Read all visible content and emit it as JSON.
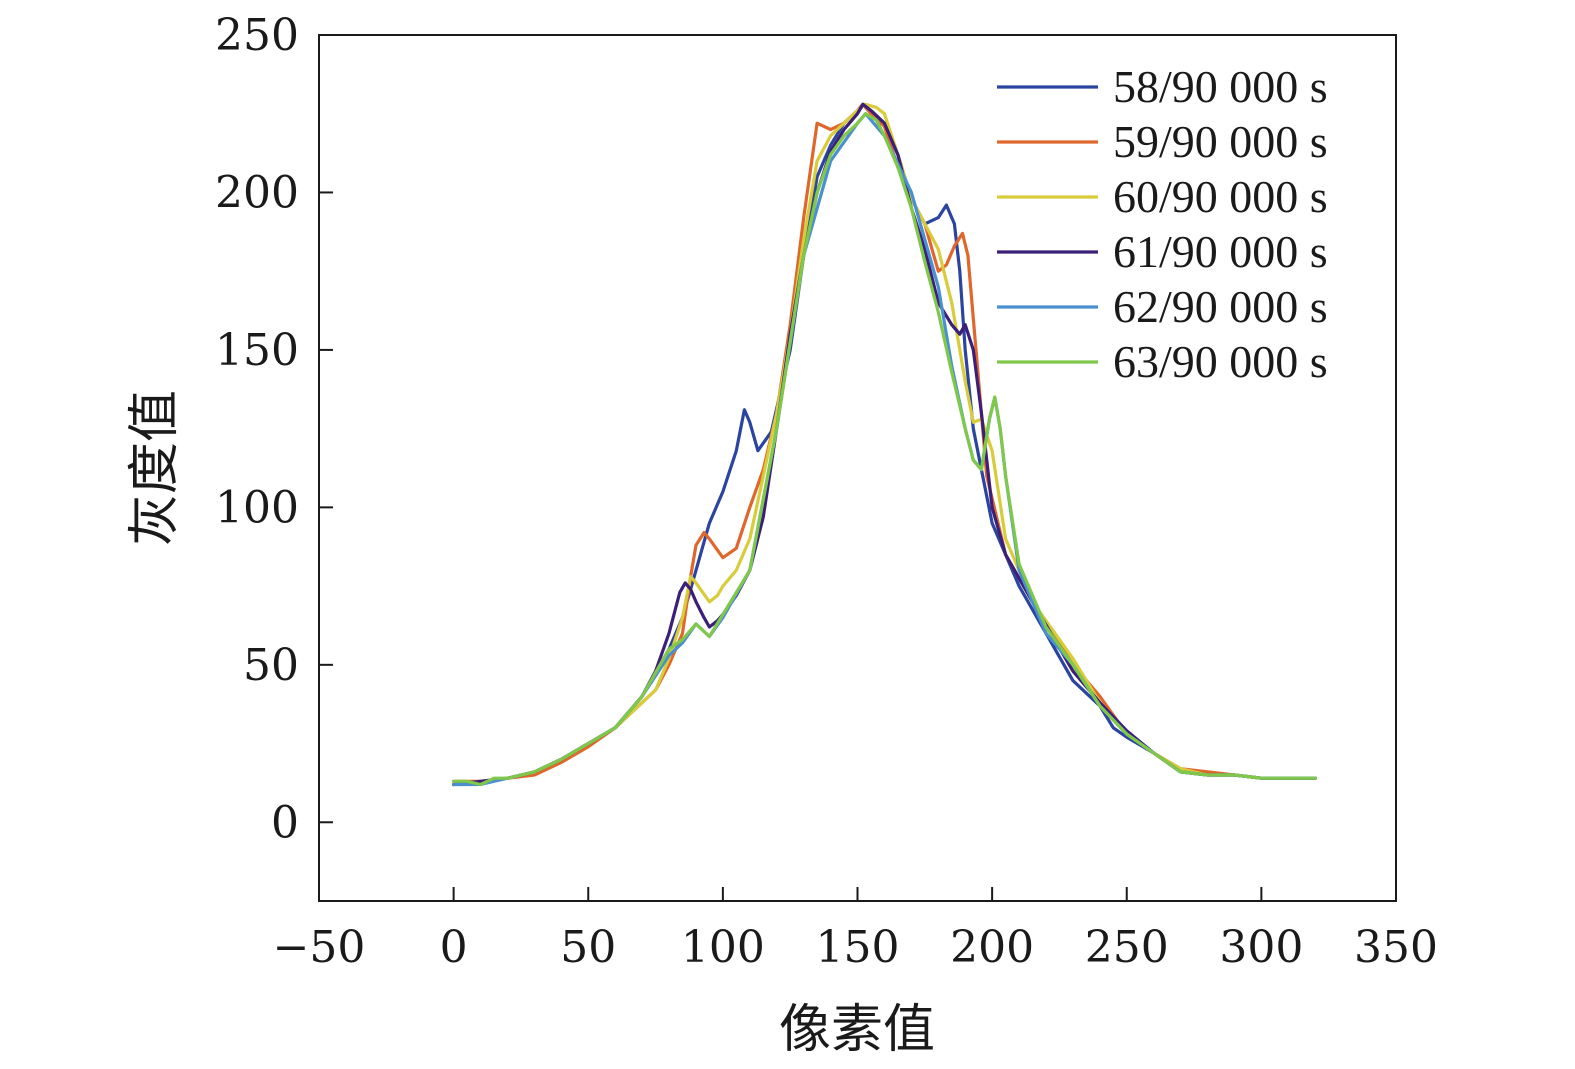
{
  "chart_data": {
    "type": "line",
    "xlabel": "像素值",
    "ylabel": "灰度值",
    "xlim": [
      -50,
      350
    ],
    "ylim": [
      -25,
      250
    ],
    "xticks": [
      -50,
      0,
      50,
      100,
      150,
      200,
      250,
      300,
      350
    ],
    "xtick_labels": [
      "−50",
      "0",
      "50",
      "100",
      "150",
      "200",
      "250",
      "300",
      "350"
    ],
    "yticks": [
      0,
      50,
      100,
      150,
      200,
      250
    ],
    "ytick_labels": [
      "0",
      "50",
      "100",
      "150",
      "200",
      "250"
    ],
    "grid": false,
    "legend_position": "top-right",
    "series": [
      {
        "name": "58/90 000 s",
        "color": "#2a44a0",
        "x": [
          0,
          10,
          20,
          30,
          40,
          50,
          60,
          70,
          75,
          80,
          85,
          90,
          95,
          100,
          105,
          108,
          110,
          113,
          118,
          125,
          130,
          135,
          140,
          145,
          150,
          152,
          155,
          160,
          165,
          170,
          175,
          180,
          183,
          186,
          188,
          190,
          193,
          196,
          200,
          205,
          210,
          220,
          230,
          240,
          245,
          250,
          260,
          270,
          280,
          290,
          300,
          310,
          320
        ],
        "y": [
          12,
          13,
          14,
          16,
          20,
          25,
          30,
          40,
          47,
          55,
          65,
          80,
          95,
          105,
          118,
          131,
          127,
          118,
          124,
          150,
          180,
          205,
          215,
          222,
          226,
          228,
          226,
          222,
          212,
          198,
          190,
          192,
          196,
          190,
          175,
          150,
          125,
          112,
          95,
          85,
          75,
          60,
          45,
          37,
          30,
          27,
          22,
          16,
          15,
          15,
          14,
          14,
          14
        ]
      },
      {
        "name": "59/90 000 s",
        "color": "#e0672c",
        "x": [
          0,
          10,
          20,
          30,
          40,
          50,
          60,
          70,
          75,
          80,
          85,
          88,
          90,
          93,
          95,
          100,
          105,
          110,
          115,
          120,
          125,
          130,
          135,
          140,
          145,
          150,
          152,
          155,
          160,
          165,
          170,
          175,
          180,
          183,
          186,
          189,
          191,
          194,
          198,
          205,
          215,
          230,
          240,
          250,
          260,
          270,
          280,
          290,
          300,
          310,
          320
        ],
        "y": [
          13,
          13,
          14,
          15,
          19,
          24,
          30,
          38,
          42,
          50,
          60,
          78,
          88,
          92,
          90,
          84,
          87,
          100,
          112,
          130,
          158,
          192,
          222,
          220,
          222,
          226,
          228,
          225,
          221,
          208,
          198,
          190,
          175,
          177,
          183,
          187,
          180,
          150,
          110,
          85,
          70,
          50,
          40,
          28,
          22,
          17,
          16,
          15,
          14,
          14,
          14
        ]
      },
      {
        "name": "60/90 000 s",
        "color": "#d8cc3a",
        "x": [
          0,
          10,
          20,
          30,
          40,
          50,
          60,
          70,
          75,
          80,
          85,
          88,
          90,
          95,
          98,
          100,
          105,
          110,
          115,
          120,
          125,
          130,
          135,
          140,
          145,
          150,
          153,
          157,
          160,
          165,
          170,
          175,
          180,
          185,
          190,
          193,
          196,
          200,
          205,
          215,
          230,
          240,
          250,
          260,
          270,
          280,
          290,
          300,
          310,
          320
        ],
        "y": [
          12,
          13,
          14,
          16,
          20,
          25,
          30,
          38,
          42,
          52,
          65,
          78,
          76,
          70,
          72,
          75,
          80,
          90,
          110,
          130,
          155,
          185,
          210,
          218,
          222,
          226,
          228,
          227,
          225,
          212,
          198,
          190,
          182,
          165,
          140,
          127,
          128,
          118,
          90,
          70,
          52,
          38,
          28,
          22,
          17,
          15,
          15,
          14,
          14,
          14
        ]
      },
      {
        "name": "61/90 000 s",
        "color": "#3b1f78",
        "x": [
          0,
          10,
          20,
          30,
          40,
          50,
          60,
          70,
          75,
          80,
          84,
          86,
          88,
          90,
          93,
          95,
          98,
          100,
          105,
          110,
          115,
          120,
          125,
          130,
          135,
          140,
          145,
          150,
          152,
          155,
          160,
          165,
          170,
          175,
          180,
          185,
          188,
          190,
          193,
          196,
          200,
          205,
          215,
          230,
          240,
          250,
          260,
          270,
          280,
          290,
          300,
          310,
          320
        ],
        "y": [
          12,
          13,
          14,
          16,
          20,
          25,
          30,
          40,
          48,
          60,
          73,
          76,
          74,
          70,
          65,
          62,
          64,
          66,
          72,
          80,
          97,
          125,
          155,
          180,
          200,
          213,
          220,
          225,
          228,
          226,
          222,
          212,
          195,
          182,
          165,
          158,
          155,
          158,
          150,
          130,
          100,
          85,
          70,
          48,
          38,
          29,
          22,
          16,
          15,
          15,
          14,
          14,
          14
        ]
      },
      {
        "name": "62/90 000 s",
        "color": "#4a90d0",
        "x": [
          0,
          10,
          20,
          30,
          40,
          50,
          60,
          70,
          80,
          85,
          90,
          95,
          100,
          110,
          120,
          130,
          140,
          150,
          153,
          160,
          170,
          180,
          185,
          190,
          193,
          196,
          199,
          201,
          203,
          205,
          210,
          220,
          230,
          240,
          250,
          260,
          270,
          280,
          290,
          300,
          310,
          320
        ],
        "y": [
          12,
          12,
          14,
          16,
          20,
          25,
          30,
          40,
          53,
          57,
          63,
          59,
          65,
          80,
          125,
          180,
          210,
          222,
          225,
          218,
          200,
          170,
          145,
          125,
          115,
          112,
          128,
          135,
          125,
          110,
          80,
          60,
          50,
          37,
          28,
          22,
          16,
          15,
          15,
          14,
          14,
          14
        ]
      },
      {
        "name": "63/90 000 s",
        "color": "#7fc84a",
        "x": [
          0,
          5,
          10,
          15,
          20,
          30,
          40,
          50,
          60,
          70,
          80,
          85,
          90,
          95,
          100,
          110,
          120,
          130,
          135,
          140,
          145,
          150,
          153,
          157,
          160,
          165,
          170,
          175,
          180,
          185,
          190,
          193,
          196,
          199,
          201,
          203,
          205,
          210,
          220,
          230,
          240,
          250,
          260,
          270,
          280,
          290,
          300,
          310,
          320
        ],
        "y": [
          13,
          13,
          12,
          14,
          14,
          16,
          20,
          25,
          30,
          40,
          55,
          58,
          63,
          59,
          66,
          80,
          125,
          180,
          200,
          212,
          218,
          222,
          225,
          223,
          218,
          208,
          195,
          178,
          162,
          143,
          125,
          115,
          112,
          128,
          135,
          125,
          110,
          82,
          62,
          50,
          37,
          28,
          22,
          16,
          15,
          15,
          14,
          14,
          14
        ]
      }
    ]
  }
}
